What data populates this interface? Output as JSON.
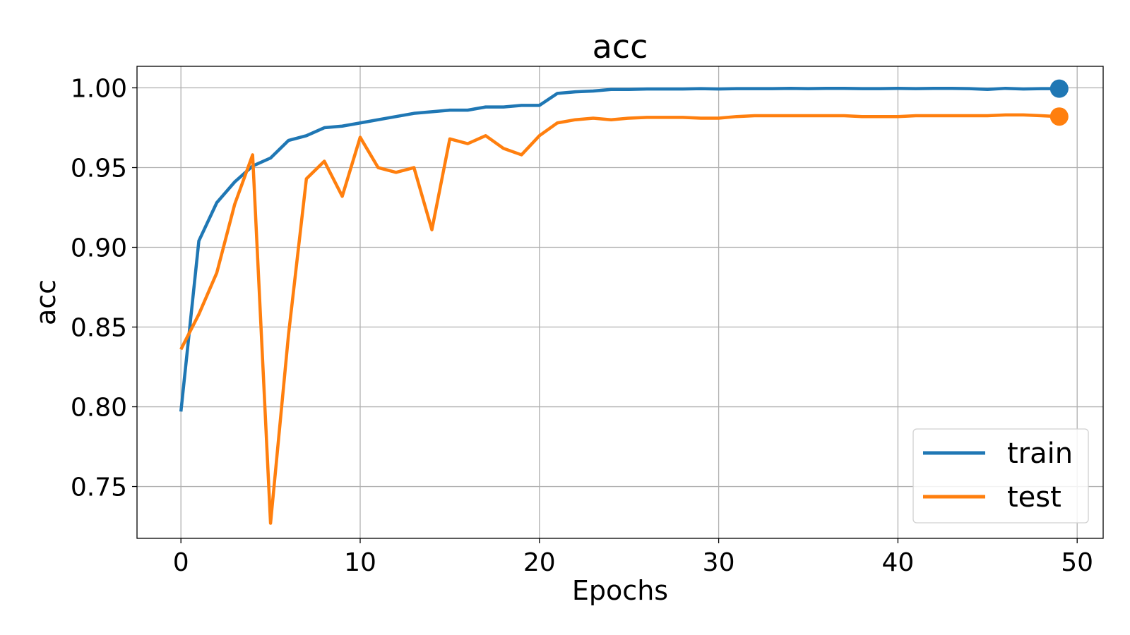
{
  "chart_data": {
    "type": "line",
    "title": "acc",
    "xlabel": "Epochs",
    "ylabel": "acc",
    "xlim": [
      -2.45,
      51.45
    ],
    "ylim": [
      0.7175,
      1.0135
    ],
    "xticks": [
      0,
      10,
      20,
      30,
      40,
      50
    ],
    "xtick_labels": [
      "0",
      "10",
      "20",
      "30",
      "40",
      "50"
    ],
    "yticks": [
      0.75,
      0.8,
      0.85,
      0.9,
      0.95,
      1.0
    ],
    "ytick_labels": [
      "0.75",
      "0.80",
      "0.85",
      "0.90",
      "0.95",
      "1.00"
    ],
    "grid": true,
    "legend_position": "bottom-right",
    "x": [
      0,
      1,
      2,
      3,
      4,
      5,
      6,
      7,
      8,
      9,
      10,
      11,
      12,
      13,
      14,
      15,
      16,
      17,
      18,
      19,
      20,
      21,
      22,
      23,
      24,
      25,
      26,
      27,
      28,
      29,
      30,
      31,
      32,
      33,
      34,
      35,
      36,
      37,
      38,
      39,
      40,
      41,
      42,
      43,
      44,
      45,
      46,
      47,
      48,
      49
    ],
    "series": [
      {
        "name": "train",
        "color": "#1f77b4",
        "end_marker": true,
        "values": [
          0.797,
          0.904,
          0.928,
          0.941,
          0.951,
          0.956,
          0.967,
          0.97,
          0.975,
          0.976,
          0.978,
          0.98,
          0.982,
          0.984,
          0.985,
          0.986,
          0.986,
          0.988,
          0.988,
          0.989,
          0.989,
          0.9965,
          0.9975,
          0.998,
          0.999,
          0.999,
          0.9993,
          0.9993,
          0.9993,
          0.9995,
          0.9993,
          0.9995,
          0.9995,
          0.9995,
          0.9997,
          0.9995,
          0.9997,
          0.9997,
          0.9995,
          0.9995,
          0.9997,
          0.9995,
          0.9997,
          0.9997,
          0.9995,
          0.999,
          0.9997,
          0.9993,
          0.9995,
          0.9995
        ]
      },
      {
        "name": "test",
        "color": "#ff7f0e",
        "end_marker": true,
        "values": [
          0.836,
          0.858,
          0.884,
          0.927,
          0.958,
          0.727,
          0.845,
          0.943,
          0.954,
          0.932,
          0.969,
          0.95,
          0.947,
          0.95,
          0.911,
          0.968,
          0.965,
          0.97,
          0.962,
          0.958,
          0.97,
          0.978,
          0.98,
          0.981,
          0.98,
          0.981,
          0.9815,
          0.9815,
          0.9815,
          0.981,
          0.981,
          0.982,
          0.9825,
          0.9825,
          0.9825,
          0.9825,
          0.9825,
          0.9825,
          0.982,
          0.982,
          0.982,
          0.9825,
          0.9825,
          0.9825,
          0.9825,
          0.9825,
          0.983,
          0.983,
          0.9825,
          0.982
        ]
      }
    ]
  }
}
